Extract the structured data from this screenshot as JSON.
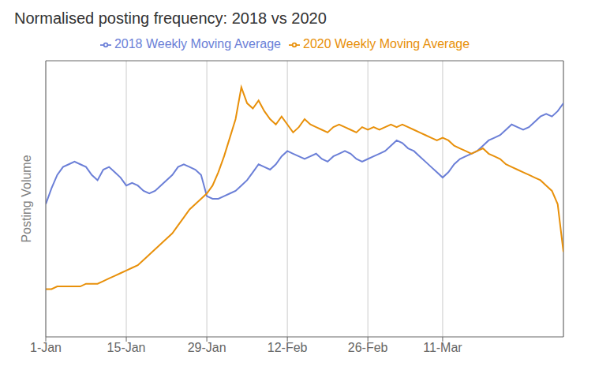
{
  "chart_data": {
    "type": "line",
    "title": "Normalised posting frequency: 2018 vs 2020",
    "y_label": "Posting Volume",
    "x": [
      0,
      1,
      2,
      3,
      4,
      5,
      6,
      7,
      8,
      9,
      10,
      11,
      12,
      13,
      14,
      15,
      16,
      17,
      18,
      19,
      20,
      21,
      22,
      23,
      24,
      25,
      26,
      27,
      28,
      29,
      30,
      31,
      32,
      33,
      34,
      35,
      36,
      37,
      38,
      39,
      40,
      41,
      42,
      43,
      44,
      45,
      46,
      47,
      48,
      49,
      50,
      51,
      52,
      53,
      54,
      55,
      56,
      57,
      58,
      59,
      60,
      61,
      62,
      63,
      64,
      65,
      66,
      67,
      68,
      69,
      70,
      71,
      72,
      73,
      74,
      75,
      76,
      77,
      78,
      79,
      80,
      81,
      82,
      83,
      84,
      85,
      86,
      87,
      88,
      89,
      90
    ],
    "series": [
      {
        "name": "2018 Weekly Moving Average",
        "color": "#6b7fd7",
        "values": [
          0.58,
          0.64,
          0.69,
          0.72,
          0.73,
          0.74,
          0.73,
          0.72,
          0.69,
          0.67,
          0.71,
          0.72,
          0.7,
          0.68,
          0.65,
          0.66,
          0.65,
          0.63,
          0.62,
          0.63,
          0.65,
          0.67,
          0.69,
          0.72,
          0.73,
          0.72,
          0.71,
          0.69,
          0.61,
          0.6,
          0.6,
          0.61,
          0.62,
          0.63,
          0.65,
          0.67,
          0.7,
          0.73,
          0.72,
          0.71,
          0.73,
          0.76,
          0.78,
          0.77,
          0.76,
          0.75,
          0.76,
          0.77,
          0.75,
          0.74,
          0.76,
          0.77,
          0.78,
          0.77,
          0.75,
          0.74,
          0.75,
          0.76,
          0.77,
          0.78,
          0.8,
          0.82,
          0.81,
          0.79,
          0.78,
          0.76,
          0.74,
          0.72,
          0.7,
          0.68,
          0.7,
          0.73,
          0.75,
          0.76,
          0.77,
          0.78,
          0.8,
          0.82,
          0.83,
          0.84,
          0.86,
          0.88,
          0.87,
          0.86,
          0.87,
          0.89,
          0.91,
          0.92,
          0.91,
          0.93,
          0.96
        ]
      },
      {
        "name": "2020 Weekly Moving Average",
        "color": "#e8900a",
        "values": [
          0.26,
          0.26,
          0.27,
          0.27,
          0.27,
          0.27,
          0.27,
          0.28,
          0.28,
          0.28,
          0.29,
          0.3,
          0.31,
          0.32,
          0.33,
          0.34,
          0.35,
          0.37,
          0.39,
          0.41,
          0.43,
          0.45,
          0.47,
          0.5,
          0.53,
          0.56,
          0.58,
          0.6,
          0.62,
          0.65,
          0.7,
          0.76,
          0.83,
          0.9,
          1.02,
          0.96,
          0.94,
          0.97,
          0.93,
          0.9,
          0.88,
          0.91,
          0.88,
          0.85,
          0.87,
          0.9,
          0.88,
          0.87,
          0.86,
          0.85,
          0.87,
          0.88,
          0.87,
          0.86,
          0.85,
          0.87,
          0.86,
          0.87,
          0.86,
          0.87,
          0.88,
          0.87,
          0.88,
          0.87,
          0.86,
          0.85,
          0.84,
          0.83,
          0.82,
          0.83,
          0.82,
          0.8,
          0.79,
          0.78,
          0.77,
          0.78,
          0.79,
          0.77,
          0.76,
          0.75,
          0.73,
          0.72,
          0.71,
          0.7,
          0.69,
          0.68,
          0.67,
          0.65,
          0.63,
          0.58,
          0.4
        ]
      }
    ],
    "xlim": [
      0,
      90
    ],
    "xticks": [
      {
        "value": 0,
        "label": "1-Jan"
      },
      {
        "value": 14,
        "label": "15-Jan"
      },
      {
        "value": 28,
        "label": "29-Jan"
      },
      {
        "value": 42,
        "label": "12-Feb"
      },
      {
        "value": 56,
        "label": "26-Feb"
      },
      {
        "value": 69,
        "label": "11-Mar"
      }
    ],
    "ylim": [
      0.08,
      1.12
    ],
    "yticks": [],
    "grid": true,
    "legend": "top",
    "tick_labels": "x"
  }
}
